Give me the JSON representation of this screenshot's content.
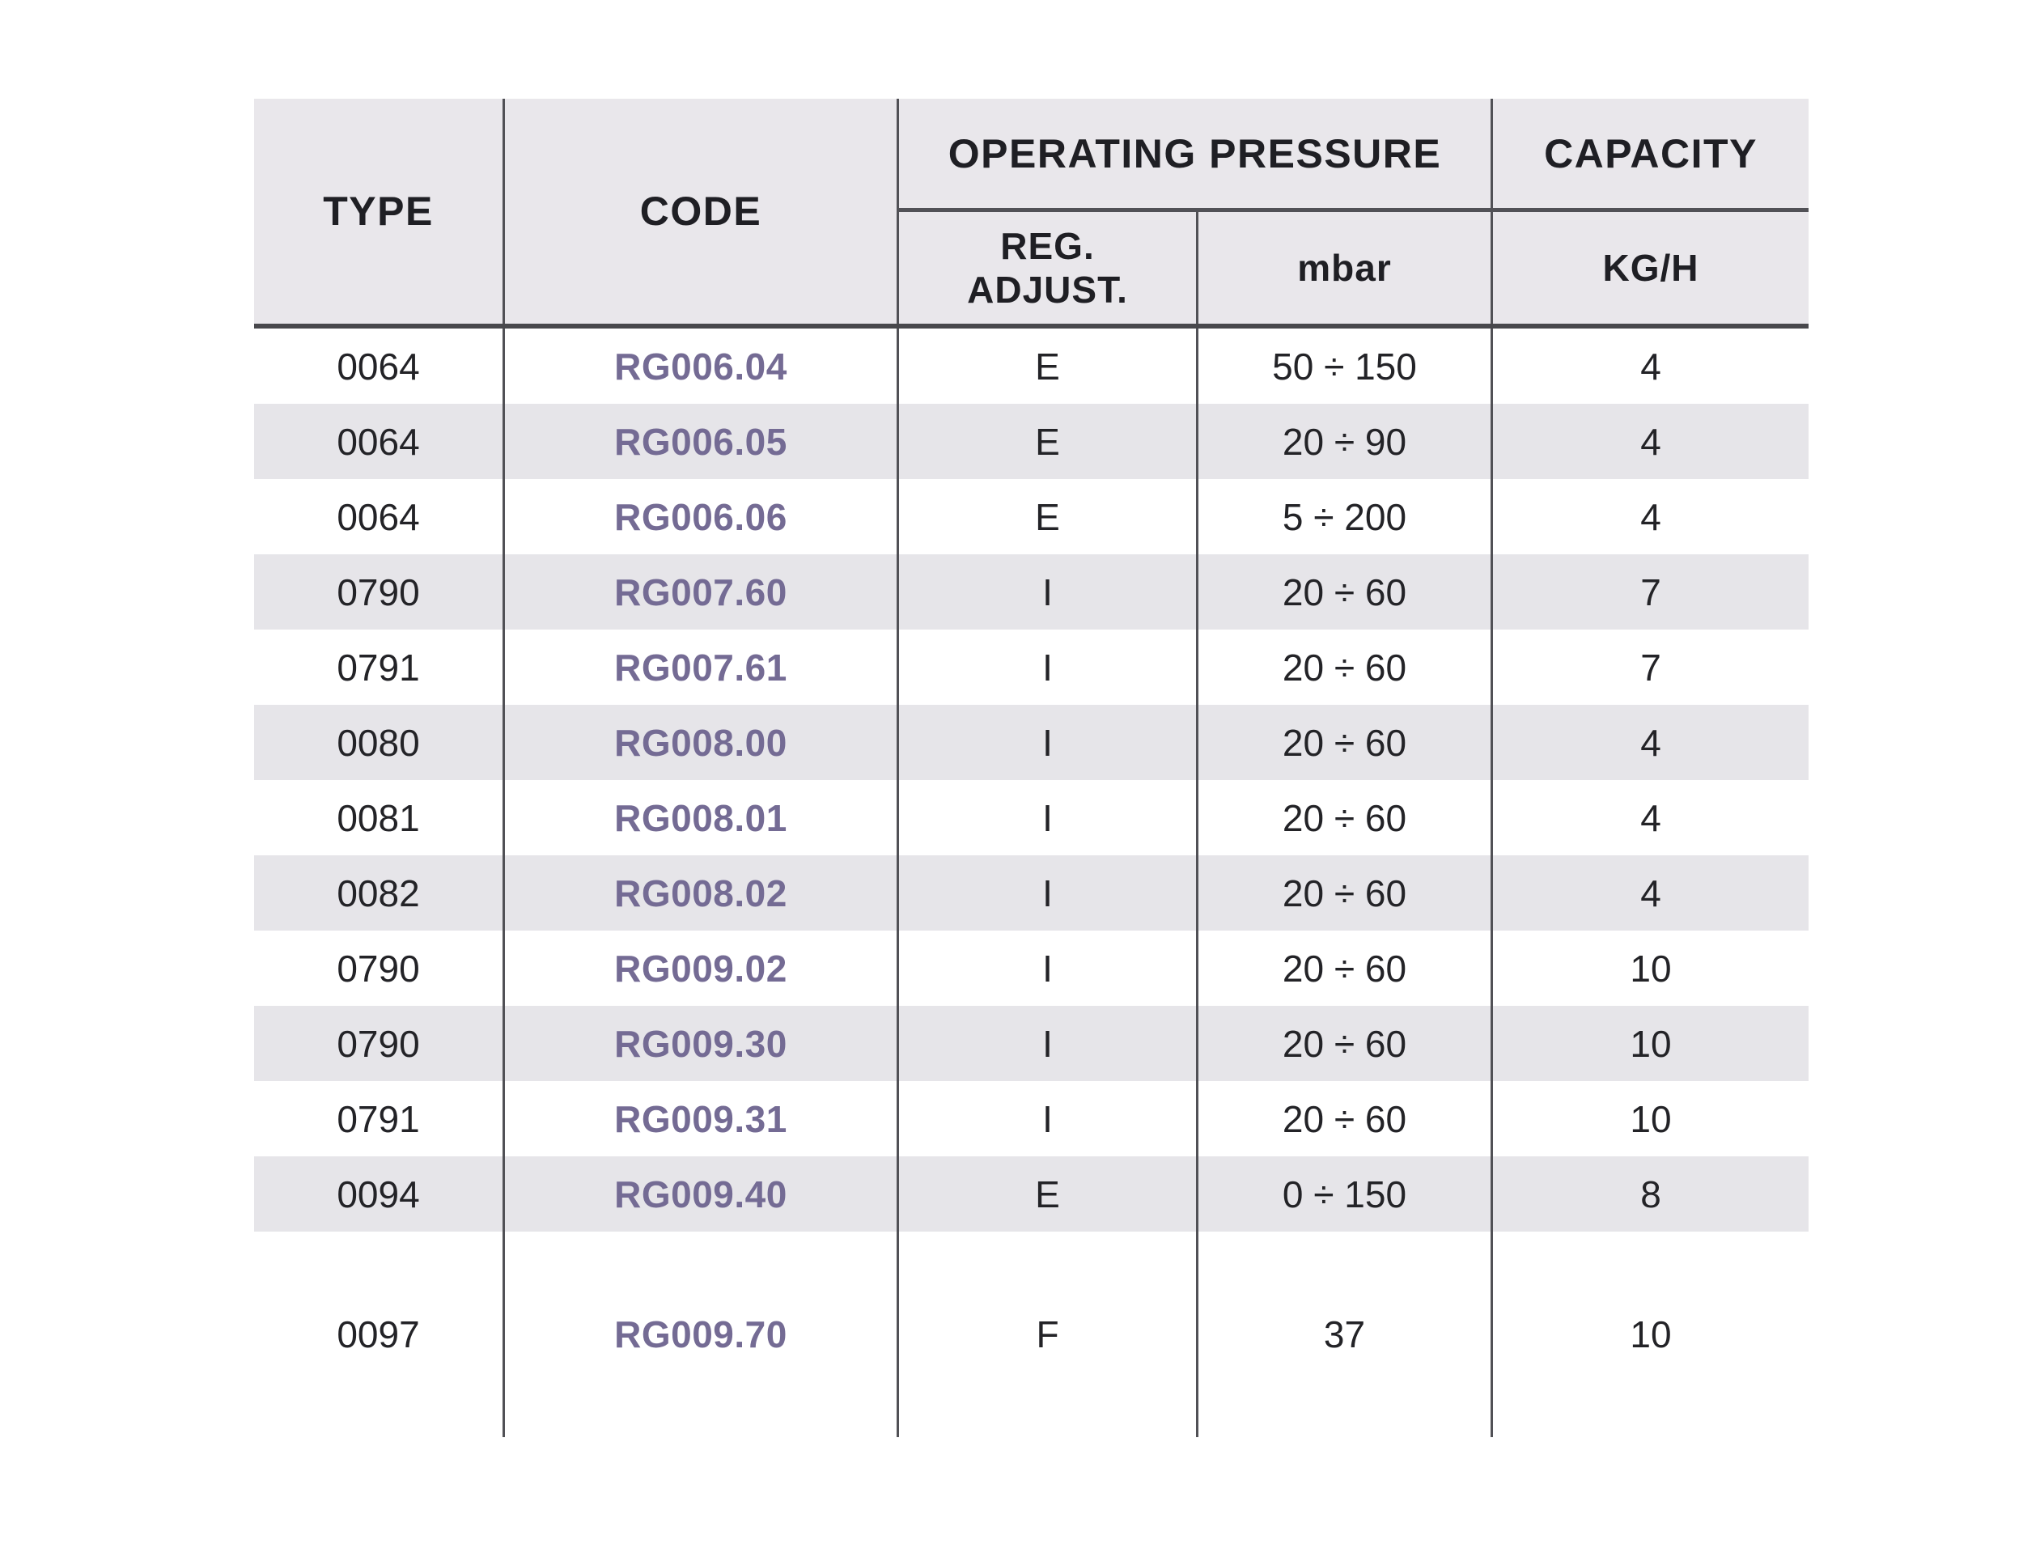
{
  "table": {
    "header": {
      "type": "TYPE",
      "code": "CODE",
      "operating_pressure": "OPERATING PRESSURE",
      "capacity": "CAPACITY",
      "reg_line1": "REG.",
      "reg_line2": "ADJUST.",
      "mbar": "mbar",
      "kgh": "KG/H"
    },
    "rows": [
      {
        "type": "0064",
        "code": "RG006.04",
        "reg_adjust": "E",
        "mbar": "50 ÷ 150",
        "kgh": "4"
      },
      {
        "type": "0064",
        "code": "RG006.05",
        "reg_adjust": "E",
        "mbar": "20 ÷ 90",
        "kgh": "4"
      },
      {
        "type": "0064",
        "code": "RG006.06",
        "reg_adjust": "E",
        "mbar": "5 ÷ 200",
        "kgh": "4"
      },
      {
        "type": "0790",
        "code": "RG007.60",
        "reg_adjust": "I",
        "mbar": "20 ÷ 60",
        "kgh": "7"
      },
      {
        "type": "0791",
        "code": "RG007.61",
        "reg_adjust": "I",
        "mbar": "20 ÷ 60",
        "kgh": "7"
      },
      {
        "type": "0080",
        "code": "RG008.00",
        "reg_adjust": "I",
        "mbar": "20 ÷ 60",
        "kgh": "4"
      },
      {
        "type": "0081",
        "code": "RG008.01",
        "reg_adjust": "I",
        "mbar": "20 ÷ 60",
        "kgh": "4"
      },
      {
        "type": "0082",
        "code": "RG008.02",
        "reg_adjust": "I",
        "mbar": "20 ÷ 60",
        "kgh": "4"
      },
      {
        "type": "0790",
        "code": "RG009.02",
        "reg_adjust": "I",
        "mbar": "20 ÷ 60",
        "kgh": "10"
      },
      {
        "type": "0790",
        "code": "RG009.30",
        "reg_adjust": "I",
        "mbar": "20 ÷ 60",
        "kgh": "10"
      },
      {
        "type": "0791",
        "code": "RG009.31",
        "reg_adjust": "I",
        "mbar": "20 ÷ 60",
        "kgh": "10"
      },
      {
        "type": "0094",
        "code": "RG009.40",
        "reg_adjust": "E",
        "mbar": "0 ÷ 150",
        "kgh": "8"
      },
      {
        "type": "0097",
        "code": "RG009.70",
        "reg_adjust": "F",
        "mbar": "37",
        "kgh": "10",
        "tall": true
      }
    ],
    "colors": {
      "code_accent": "#746b94",
      "header_bg": "#e9e7eb",
      "stripe_bg": "#e6e5e9",
      "grid_line": "#515156",
      "text": "#232327"
    }
  }
}
